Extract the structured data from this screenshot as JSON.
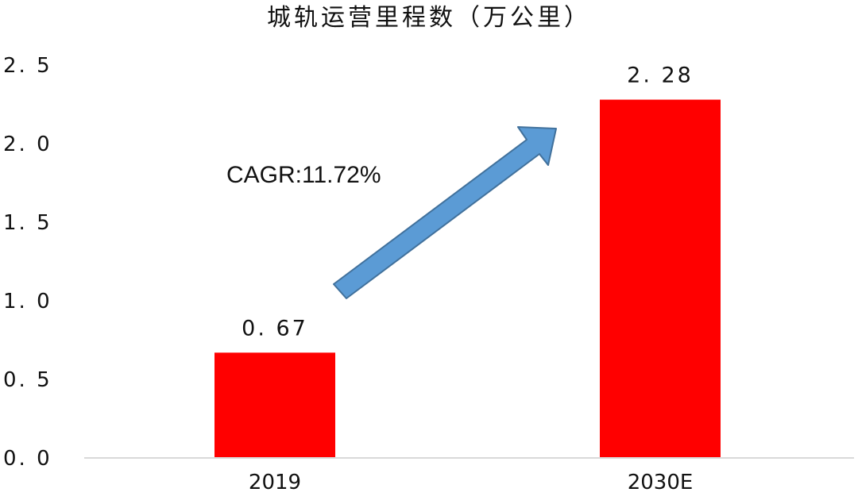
{
  "chart_data": {
    "type": "bar",
    "title": "城轨运营里程数（万公里）",
    "xlabel": "",
    "ylabel": "",
    "categories": [
      "2019",
      "2030E"
    ],
    "values": [
      0.67,
      2.28
    ],
    "data_labels": [
      "0. 67",
      "2. 28"
    ],
    "ylim": [
      0,
      2.5
    ],
    "yticks": [
      0.0,
      0.5,
      1.0,
      1.5,
      2.0,
      2.5
    ],
    "ytick_labels": [
      "0. 0",
      "0. 5",
      "1. 0",
      "1. 5",
      "2. 0",
      "2. 5"
    ],
    "grid": false,
    "legend": false,
    "bar_color": "#ff0000",
    "annotation": {
      "text": "CAGR:11.72%",
      "arrow": "up-right",
      "arrow_color": "#5b9bd5"
    }
  }
}
